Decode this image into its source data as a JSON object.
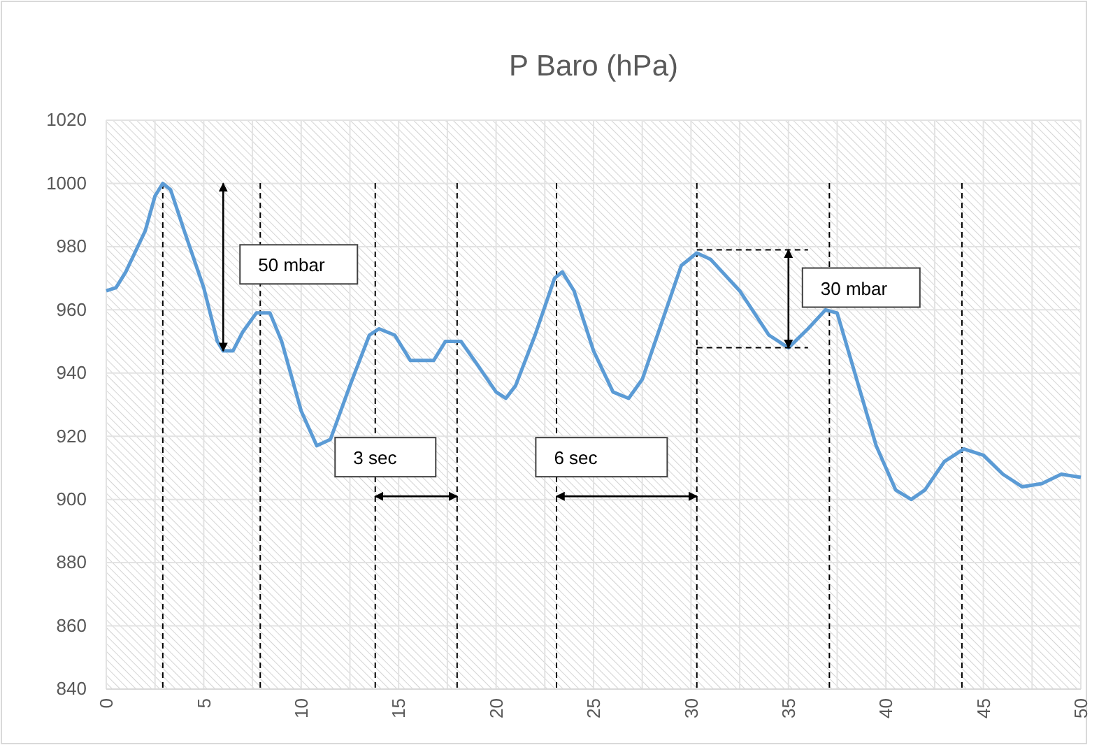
{
  "chart_data": {
    "type": "line",
    "title": "P Baro (hPa)",
    "x": [
      0,
      0.5,
      1,
      2,
      2.5,
      2.9,
      3.3,
      4,
      5,
      5.7,
      6,
      6.5,
      7,
      7.7,
      8.4,
      9,
      10,
      10.8,
      11.5,
      12.5,
      13.5,
      14,
      14.8,
      15.6,
      16.8,
      17.4,
      18.2,
      19,
      20,
      20.5,
      21,
      22,
      23,
      23.4,
      24,
      25,
      26,
      26.8,
      27.5,
      28.5,
      29.5,
      30.3,
      31,
      32.5,
      34,
      35,
      36,
      36.9,
      37.5,
      38.5,
      39.5,
      40.5,
      41.3,
      42,
      43,
      44,
      45,
      46,
      47,
      48,
      49,
      50
    ],
    "series": [
      {
        "color": "#5b9bd5",
        "values": [
          966,
          967,
          972,
          985,
          996,
          1000,
          998,
          985,
          967,
          950,
          947,
          947,
          953,
          959,
          959,
          950,
          928,
          917,
          919,
          936,
          952,
          954,
          952,
          944,
          944,
          950,
          950,
          943,
          934,
          932,
          936,
          952,
          970,
          972,
          966,
          947,
          934,
          932,
          938,
          956,
          974,
          978,
          976,
          966,
          952,
          948,
          954,
          960,
          959,
          938,
          917,
          903,
          900,
          903,
          912,
          916,
          914,
          908,
          904,
          905,
          908,
          907
        ]
      }
    ],
    "xlim": [
      0,
      50
    ],
    "xticks": [
      0,
      5,
      10,
      15,
      20,
      25,
      30,
      35,
      40,
      45,
      50
    ],
    "ylim": [
      840,
      1020
    ],
    "yticks": [
      840,
      860,
      880,
      900,
      920,
      940,
      960,
      980,
      1000,
      1020
    ],
    "grid": true,
    "marker": "none",
    "line_style": "solid",
    "ref_lines": [
      {
        "axis": "x",
        "value": 2.9,
        "color": "#000000",
        "line_style": "dashed"
      },
      {
        "axis": "x",
        "value": 7.9,
        "color": "#000000",
        "line_style": "dashed"
      },
      {
        "axis": "x",
        "value": 13.8,
        "color": "#000000",
        "line_style": "dashed"
      },
      {
        "axis": "x",
        "value": 18,
        "color": "#000000",
        "line_style": "dashed"
      },
      {
        "axis": "x",
        "value": 23.1,
        "color": "#000000",
        "line_style": "dashed"
      },
      {
        "axis": "x",
        "value": 30.3,
        "color": "#000000",
        "line_style": "dashed"
      },
      {
        "axis": "x",
        "value": 37.1,
        "color": "#000000",
        "line_style": "dashed"
      },
      {
        "axis": "x",
        "value": 43.9,
        "color": "#000000",
        "line_style": "dashed"
      }
    ],
    "annotations": [
      "50 mbar",
      "3 sec",
      "6 sec",
      "30 mbar"
    ]
  }
}
